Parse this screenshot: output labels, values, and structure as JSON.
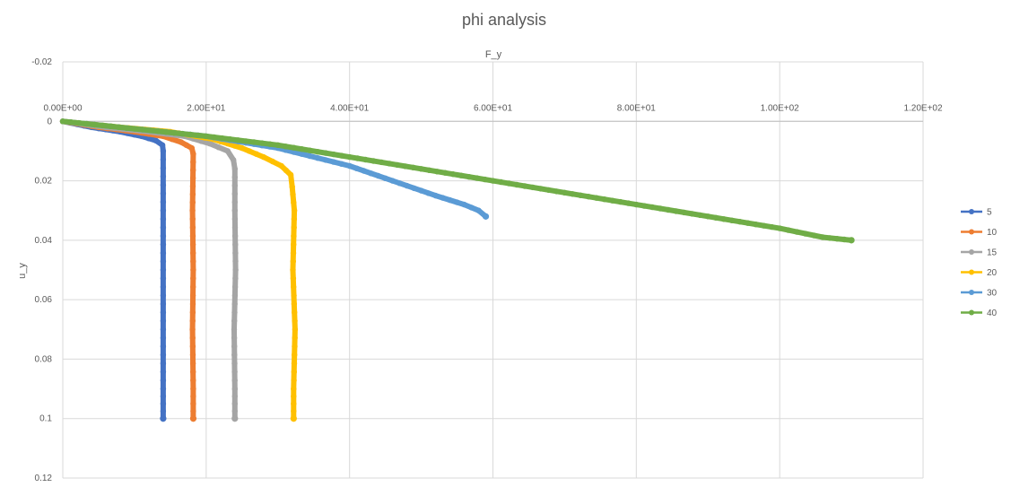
{
  "chart_data": {
    "type": "line",
    "title": "phi analysis",
    "xlabel": "F_y",
    "ylabel": "u_y",
    "x_axis_position": "top",
    "y_axis_reversed": true,
    "xlim": [
      0,
      120
    ],
    "ylim": [
      -0.02,
      0.12
    ],
    "x_ticks": [
      0,
      20,
      40,
      60,
      80,
      100,
      120
    ],
    "x_tick_labels": [
      "0.00E+00",
      "2.00E+01",
      "4.00E+01",
      "6.00E+01",
      "8.00E+01",
      "1.00E+02",
      "1.20E+02"
    ],
    "y_ticks": [
      -0.02,
      0,
      0.02,
      0.04,
      0.06,
      0.08,
      0.1,
      0.12
    ],
    "y_tick_labels": [
      "-0.02",
      "0",
      "0.02",
      "0.04",
      "0.06",
      "0.08",
      "0.1",
      "0.12"
    ],
    "grid": true,
    "legend_position": "right",
    "series": [
      {
        "name": "5",
        "color": "#4472c4",
        "points": [
          [
            0,
            0
          ],
          [
            4,
            0.002
          ],
          [
            8,
            0.0035
          ],
          [
            11,
            0.005
          ],
          [
            13,
            0.0065
          ],
          [
            13.9,
            0.008
          ],
          [
            14,
            0.01
          ],
          [
            14,
            0.03
          ],
          [
            14,
            0.05
          ],
          [
            14,
            0.07
          ],
          [
            14,
            0.09
          ],
          [
            14,
            0.1
          ]
        ]
      },
      {
        "name": "10",
        "color": "#ed7d31",
        "points": [
          [
            0,
            0
          ],
          [
            5,
            0.002
          ],
          [
            10,
            0.0035
          ],
          [
            14,
            0.005
          ],
          [
            16.5,
            0.007
          ],
          [
            18,
            0.009
          ],
          [
            18.2,
            0.011
          ],
          [
            18.1,
            0.03
          ],
          [
            18.2,
            0.05
          ],
          [
            18.1,
            0.07
          ],
          [
            18.2,
            0.09
          ],
          [
            18.2,
            0.1
          ]
        ]
      },
      {
        "name": "15",
        "color": "#a5a5a5",
        "points": [
          [
            0,
            0
          ],
          [
            6,
            0.002
          ],
          [
            12,
            0.0035
          ],
          [
            17,
            0.005
          ],
          [
            20.5,
            0.0075
          ],
          [
            23,
            0.01
          ],
          [
            23.8,
            0.013
          ],
          [
            24,
            0.016
          ],
          [
            24,
            0.03
          ],
          [
            24.1,
            0.05
          ],
          [
            23.9,
            0.07
          ],
          [
            24,
            0.09
          ],
          [
            24,
            0.1
          ]
        ]
      },
      {
        "name": "20",
        "color": "#ffc000",
        "points": [
          [
            0,
            0
          ],
          [
            8,
            0.002
          ],
          [
            15,
            0.0035
          ],
          [
            21,
            0.006
          ],
          [
            25,
            0.009
          ],
          [
            28,
            0.012
          ],
          [
            30.5,
            0.015
          ],
          [
            31.8,
            0.018
          ],
          [
            32,
            0.022
          ],
          [
            32.3,
            0.03
          ],
          [
            32.1,
            0.05
          ],
          [
            32.4,
            0.07
          ],
          [
            32.2,
            0.09
          ],
          [
            32.2,
            0.1
          ]
        ]
      },
      {
        "name": "30",
        "color": "#5b9bd5",
        "points": [
          [
            0,
            0
          ],
          [
            10,
            0.0025
          ],
          [
            20,
            0.005
          ],
          [
            30,
            0.009
          ],
          [
            40,
            0.015
          ],
          [
            46,
            0.02
          ],
          [
            52,
            0.025
          ],
          [
            56,
            0.028
          ],
          [
            58,
            0.03
          ],
          [
            59,
            0.032
          ]
        ]
      },
      {
        "name": "40",
        "color": "#70ad47",
        "points": [
          [
            0,
            0
          ],
          [
            10,
            0.0025
          ],
          [
            20,
            0.005
          ],
          [
            30,
            0.008
          ],
          [
            40,
            0.012
          ],
          [
            50,
            0.016
          ],
          [
            60,
            0.02
          ],
          [
            70,
            0.024
          ],
          [
            80,
            0.028
          ],
          [
            90,
            0.032
          ],
          [
            100,
            0.036
          ],
          [
            106,
            0.039
          ],
          [
            110,
            0.04
          ]
        ]
      }
    ]
  }
}
